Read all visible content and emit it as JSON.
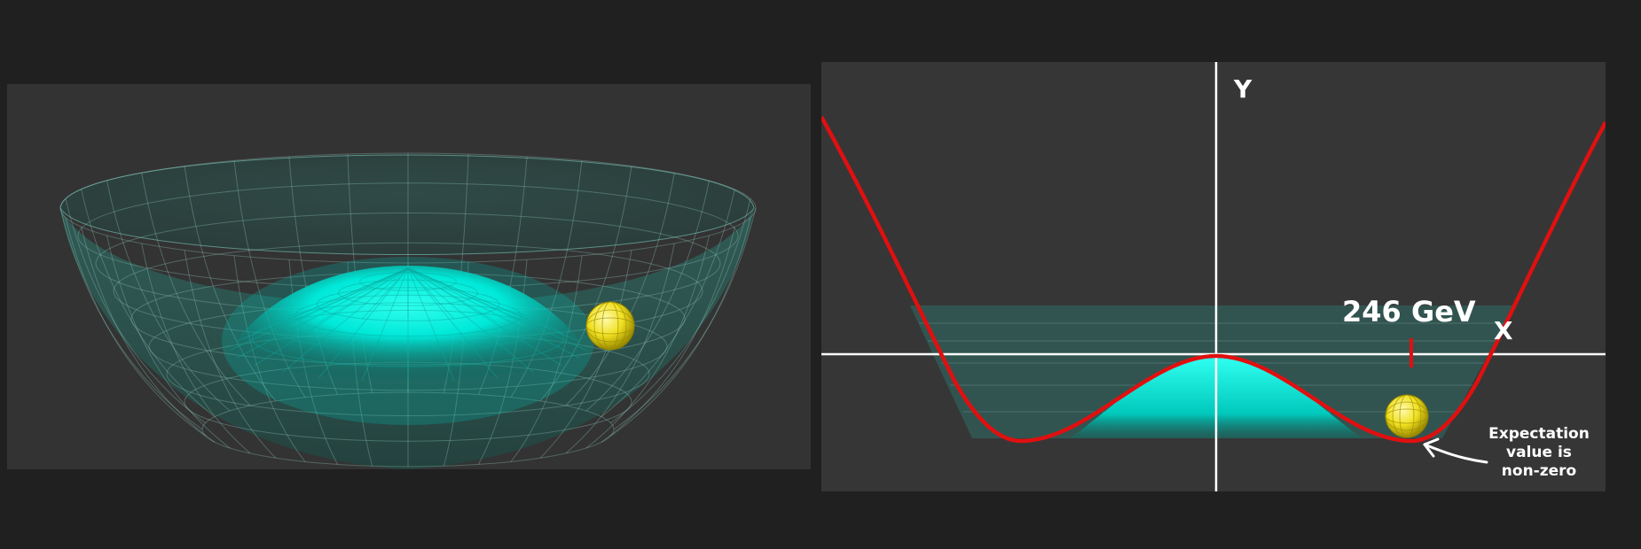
{
  "diagram": {
    "axis_y_label": "Y",
    "axis_x_label": "X",
    "energy_label": "246 GeV",
    "annotation_lines": [
      "Expectation",
      "value is",
      "non-zero"
    ],
    "colors": {
      "background": "#202020",
      "panel": "#363636",
      "surface_cyan": "#00ffee",
      "bowl_teal": "#2f6b64",
      "grid_line": "#7fb3aa",
      "potential_curve": "#e01010",
      "ball_yellow": "#f0e020",
      "axis": "#ffffff"
    }
  }
}
